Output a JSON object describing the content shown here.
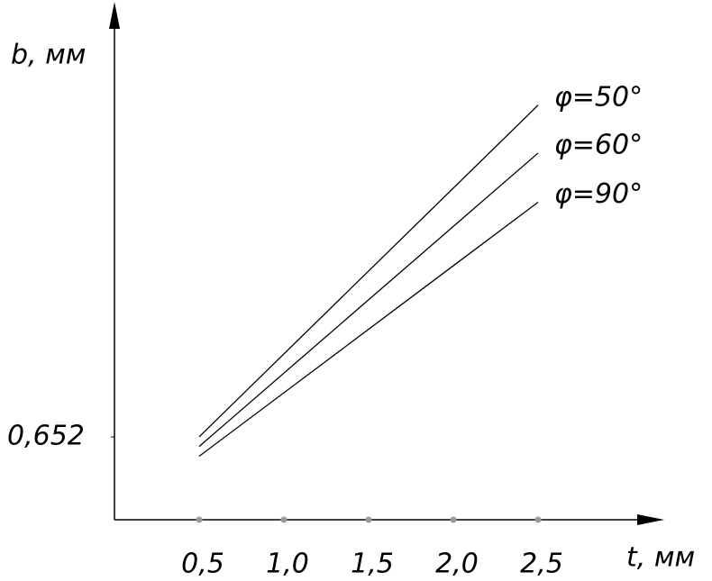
{
  "chart_data": {
    "type": "line",
    "x_label": "t, мм",
    "y_label": "b, мм",
    "x": [
      0.5,
      2.5
    ],
    "series": [
      {
        "name": "φ=50°",
        "color": "#000000",
        "values": [
          0.653,
          3.264
        ]
      },
      {
        "name": "φ=60°",
        "color": "#000000",
        "values": [
          0.577,
          2.887
        ]
      },
      {
        "name": "φ=90°",
        "color": "#000000",
        "values": [
          0.5,
          2.5
        ]
      }
    ],
    "xlim": [
      0,
      3.2
    ],
    "ylim": [
      0,
      4
    ],
    "xticks": [
      {
        "value": 0.5,
        "label": "0,5"
      },
      {
        "value": 1.0,
        "label": "1,0"
      },
      {
        "value": 1.5,
        "label": "1,5"
      },
      {
        "value": 2.0,
        "label": "2,0"
      },
      {
        "value": 2.5,
        "label": "2,5"
      }
    ],
    "yticks": [
      {
        "value": 0.652,
        "label": "0,652"
      }
    ],
    "grid": false
  }
}
